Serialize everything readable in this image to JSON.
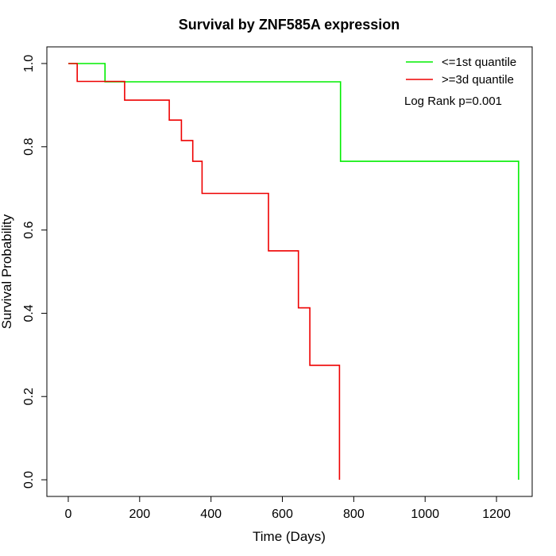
{
  "chart_data": {
    "type": "line",
    "title": "Survival by ZNF585A expression",
    "xlabel": "Time (Days)",
    "ylabel": "Survival Probability",
    "xlim": [
      -60,
      1300
    ],
    "ylim": [
      -0.04,
      1.04
    ],
    "x_ticks": [
      0,
      200,
      400,
      600,
      800,
      1000,
      1200
    ],
    "y_ticks": [
      0.0,
      0.2,
      0.4,
      0.6,
      0.8,
      1.0
    ],
    "x_tick_labels": [
      "0",
      "200",
      "400",
      "600",
      "800",
      "1000",
      "1200"
    ],
    "y_tick_labels": [
      "0.0",
      "0.2",
      "0.4",
      "0.6",
      "0.8",
      "1.0"
    ],
    "grid": false,
    "legend_position": "top-right",
    "annotation": "Log Rank p=0.001",
    "series": [
      {
        "name": "<=1st quantile",
        "color": "#00ee00",
        "step": true,
        "points": [
          [
            0,
            1.0
          ],
          [
            103,
            1.0
          ],
          [
            103,
            0.956
          ],
          [
            763,
            0.956
          ],
          [
            763,
            0.765
          ],
          [
            1262,
            0.765
          ],
          [
            1262,
            0.0
          ]
        ]
      },
      {
        "name": ">=3d quantile",
        "color": "#ee0000",
        "step": true,
        "points": [
          [
            0,
            1.0
          ],
          [
            25,
            1.0
          ],
          [
            25,
            0.957
          ],
          [
            158,
            0.957
          ],
          [
            158,
            0.912
          ],
          [
            283,
            0.912
          ],
          [
            283,
            0.864
          ],
          [
            317,
            0.864
          ],
          [
            317,
            0.815
          ],
          [
            349,
            0.815
          ],
          [
            349,
            0.765
          ],
          [
            375,
            0.765
          ],
          [
            375,
            0.688
          ],
          [
            561,
            0.688
          ],
          [
            561,
            0.55
          ],
          [
            645,
            0.55
          ],
          [
            645,
            0.413
          ],
          [
            677,
            0.413
          ],
          [
            677,
            0.275
          ],
          [
            760,
            0.275
          ],
          [
            760,
            0.0
          ]
        ]
      }
    ]
  }
}
